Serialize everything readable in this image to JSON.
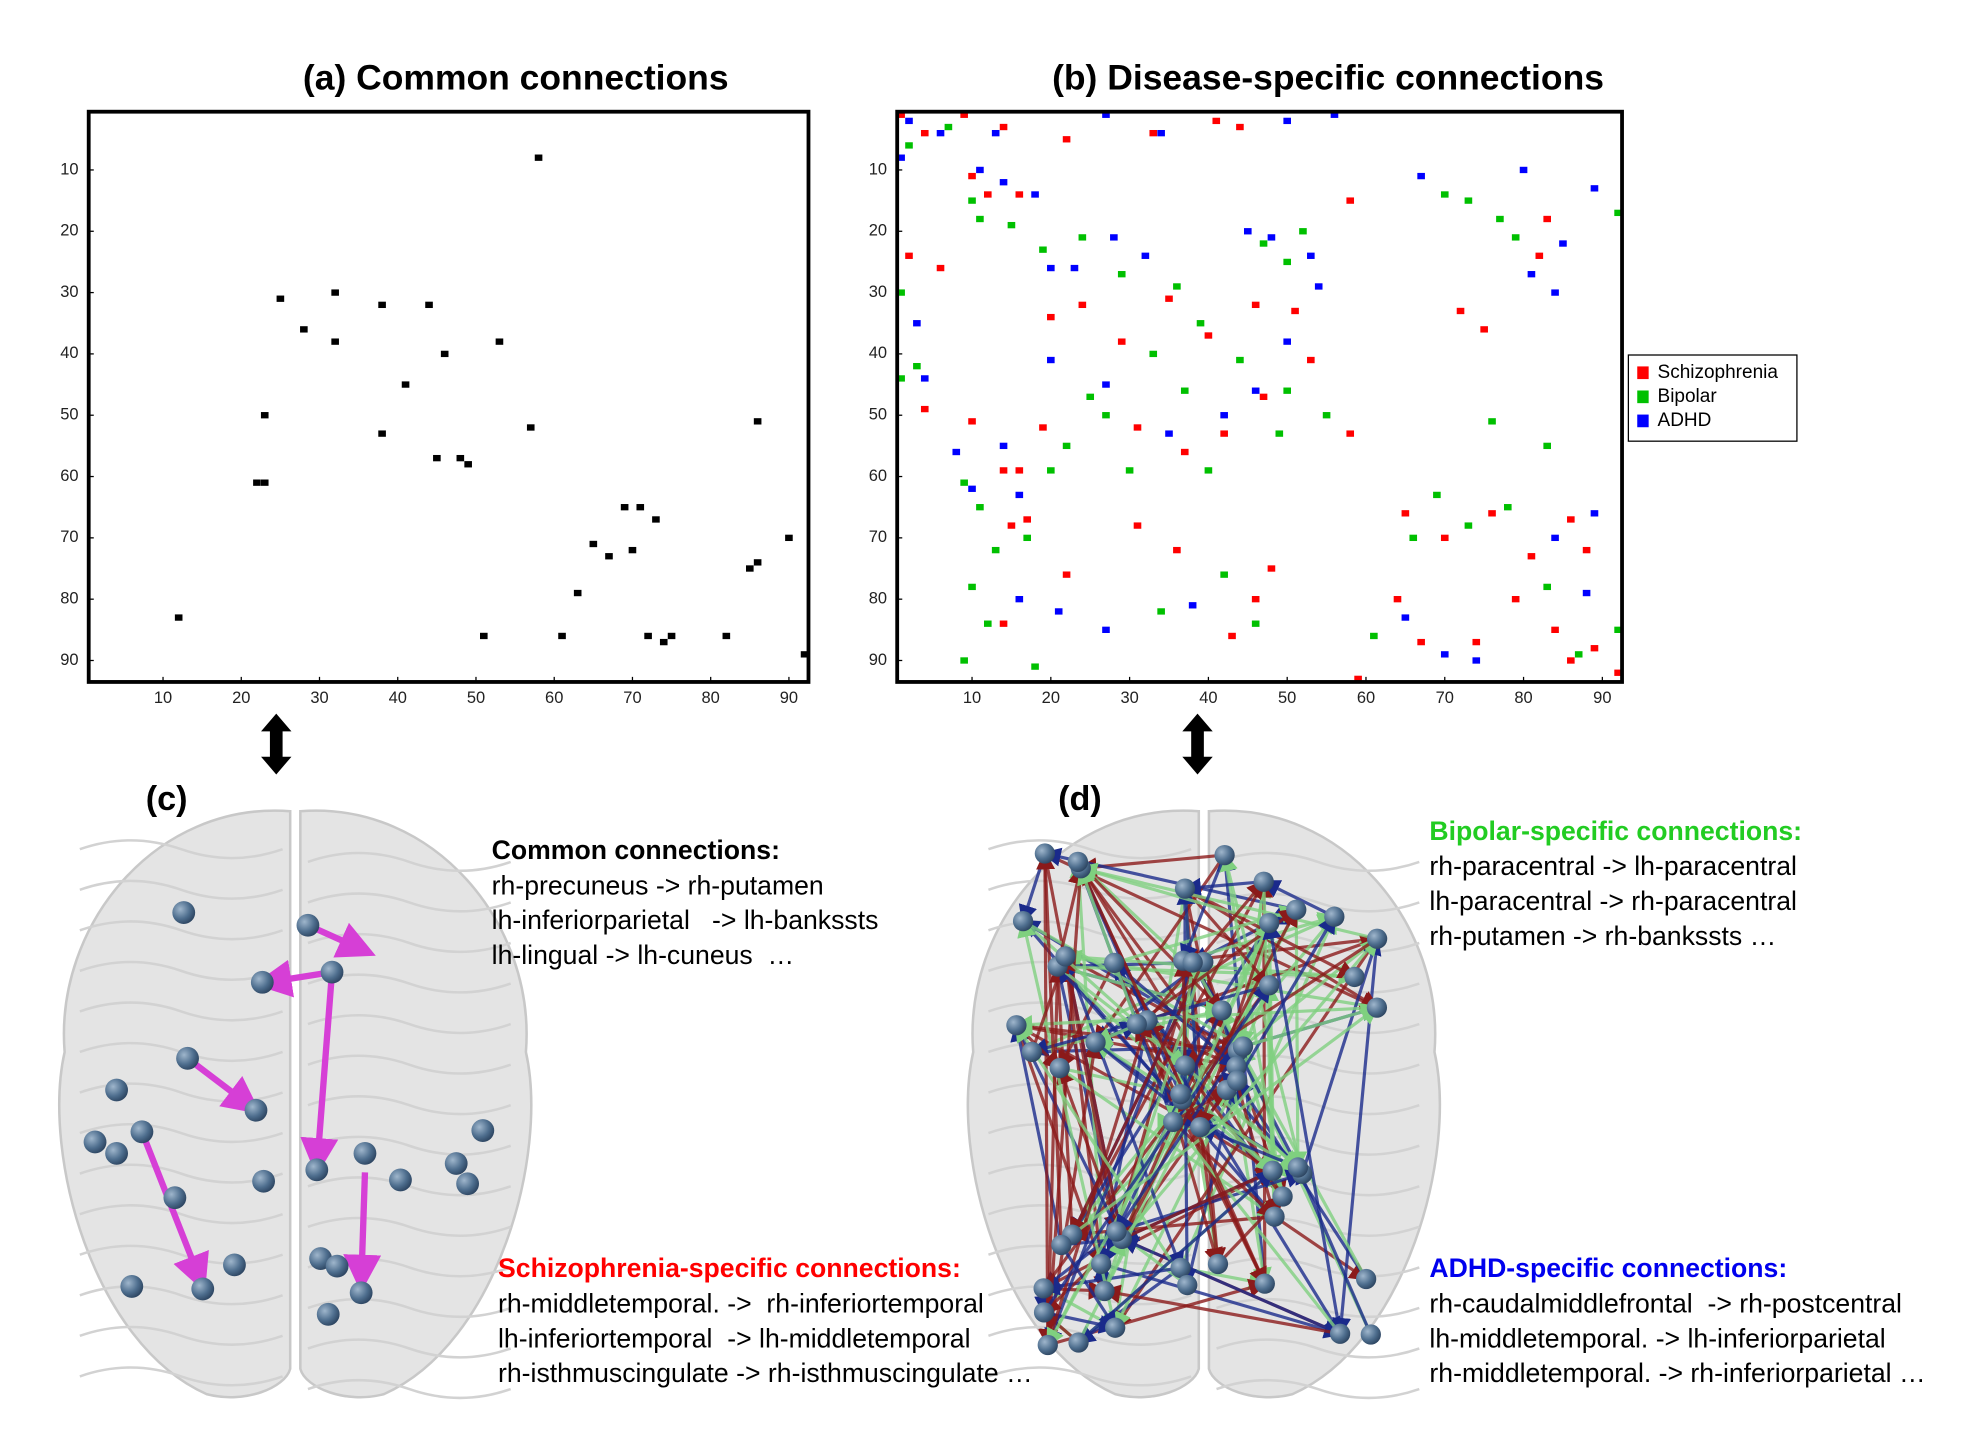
{
  "chart_data": [
    {
      "type": "scatter",
      "title": "(a) Common connections",
      "color": "#000000",
      "x": [
        58,
        25,
        32,
        38,
        44,
        28,
        32,
        53,
        46,
        41,
        23,
        57,
        86,
        38,
        45,
        48,
        49,
        22,
        23,
        69,
        71,
        73,
        65,
        67,
        70,
        90,
        86,
        85,
        63,
        12,
        51,
        61,
        72,
        74,
        75,
        82,
        92
      ],
      "values": [
        8,
        31,
        30,
        32,
        32,
        36,
        38,
        38,
        40,
        45,
        50,
        52,
        51,
        53,
        57,
        57,
        58,
        61,
        61,
        65,
        65,
        67,
        71,
        73,
        72,
        70,
        74,
        75,
        79,
        83,
        86,
        86,
        86,
        87,
        86,
        86,
        89
      ],
      "xlim": [
        0.5,
        92.5
      ],
      "ylim": [
        93.5,
        0.5
      ],
      "xticks": [
        10,
        20,
        30,
        40,
        50,
        60,
        70,
        80,
        90
      ],
      "yticks": [
        10,
        20,
        30,
        40,
        50,
        60,
        70,
        80,
        90
      ]
    },
    {
      "type": "scatter",
      "title": "(b) Disease-specific connections",
      "legend": "right",
      "xlim": [
        0.5,
        92.5
      ],
      "ylim": [
        93.5,
        0.5
      ],
      "xticks": [
        10,
        20,
        30,
        40,
        50,
        60,
        70,
        80,
        90
      ],
      "yticks": [
        10,
        20,
        30,
        40,
        50,
        60,
        70,
        80,
        90
      ],
      "series": [
        {
          "name": "Schizophrenia",
          "color": "#ff0000",
          "x": [
            1,
            4,
            9,
            14,
            22,
            33,
            41,
            44,
            10,
            12,
            16,
            2,
            6,
            20,
            24,
            29,
            35,
            40,
            46,
            51,
            53,
            47,
            42,
            37,
            31,
            19,
            10,
            4,
            14,
            16,
            58,
            58,
            72,
            75,
            82,
            83,
            65,
            70,
            76,
            81,
            86,
            88,
            79,
            84,
            89,
            64,
            67,
            74,
            86,
            92,
            59,
            15,
            17,
            14,
            22,
            31,
            36,
            46,
            48,
            43
          ],
          "values": [
            1,
            4,
            1,
            3,
            5,
            4,
            2,
            3,
            11,
            14,
            14,
            24,
            26,
            34,
            32,
            38,
            31,
            37,
            32,
            33,
            41,
            47,
            53,
            56,
            52,
            52,
            51,
            49,
            59,
            59,
            53,
            15,
            33,
            36,
            24,
            18,
            66,
            70,
            66,
            73,
            67,
            72,
            80,
            85,
            88,
            80,
            87,
            87,
            90,
            92,
            93,
            68,
            67,
            84,
            76,
            68,
            72,
            80,
            75,
            86
          ]
        },
        {
          "name": "Bipolar",
          "color": "#00c000",
          "x": [
            2,
            7,
            10,
            11,
            15,
            19,
            24,
            29,
            36,
            39,
            47,
            52,
            50,
            33,
            27,
            22,
            25,
            37,
            44,
            50,
            55,
            49,
            40,
            30,
            20,
            1,
            3,
            1,
            9,
            11,
            13,
            17,
            10,
            12,
            9,
            18,
            34,
            42,
            46,
            61,
            66,
            69,
            73,
            78,
            83,
            87,
            92,
            73,
            77,
            92,
            79,
            70,
            76,
            83
          ],
          "values": [
            6,
            3,
            15,
            18,
            19,
            23,
            21,
            27,
            29,
            35,
            22,
            20,
            25,
            40,
            50,
            55,
            47,
            46,
            41,
            46,
            50,
            53,
            59,
            59,
            59,
            44,
            42,
            30,
            61,
            65,
            72,
            70,
            78,
            84,
            90,
            91,
            82,
            76,
            84,
            86,
            70,
            63,
            68,
            65,
            78,
            89,
            85,
            15,
            18,
            17,
            21,
            14,
            51,
            55
          ]
        },
        {
          "name": "ADHD",
          "color": "#0000ff",
          "x": [
            2,
            6,
            13,
            27,
            34,
            50,
            56,
            1,
            11,
            14,
            18,
            20,
            23,
            28,
            32,
            45,
            48,
            53,
            54,
            50,
            46,
            35,
            42,
            27,
            20,
            3,
            4,
            8,
            14,
            10,
            16,
            16,
            21,
            27,
            38,
            65,
            70,
            74,
            88,
            84,
            89,
            84,
            85,
            89,
            80,
            67,
            81
          ],
          "values": [
            2,
            4,
            4,
            1,
            4,
            2,
            1,
            8,
            10,
            12,
            14,
            26,
            26,
            21,
            24,
            20,
            21,
            24,
            29,
            38,
            46,
            53,
            50,
            45,
            41,
            35,
            44,
            56,
            55,
            62,
            63,
            80,
            82,
            85,
            81,
            83,
            89,
            90,
            79,
            70,
            66,
            30,
            22,
            13,
            10,
            11,
            27
          ]
        }
      ]
    }
  ],
  "panels": [
    {
      "label": "(c)"
    },
    {
      "label": "(d)"
    }
  ],
  "connection_lists": [
    {
      "heading": "Common connections:",
      "color": "#000000",
      "lines": [
        "rh-precuneus -> rh-putamen",
        "lh-inferiorparietal   -> lh-bankssts",
        "lh-lingual -> lh-cuneus  …"
      ]
    },
    {
      "heading": "Bipolar-specific connections:",
      "color": "#22cc22",
      "lines": [
        "rh-paracentral -> lh-paracentral",
        "lh-paracentral -> rh-paracentral",
        "rh-putamen -> rh-bankssts …"
      ]
    },
    {
      "heading": "Schizophrenia-specific connections:",
      "color": "#ff0000",
      "lines": [
        "rh-middletemporal. ->  rh-inferiortemporal",
        "lh-inferiortemporal  -> lh-middletemporal",
        "rh-isthmuscingulate -> rh-isthmuscingulate …"
      ]
    },
    {
      "heading": "ADHD-specific connections:",
      "color": "#0000ee",
      "lines": [
        "rh-caudalmiddlefrontal  -> rh-postcentral",
        "lh-middletemporal. -> lh-inferiorparietal",
        "rh-middletemporal. -> rh-inferiorparietal …"
      ]
    }
  ]
}
